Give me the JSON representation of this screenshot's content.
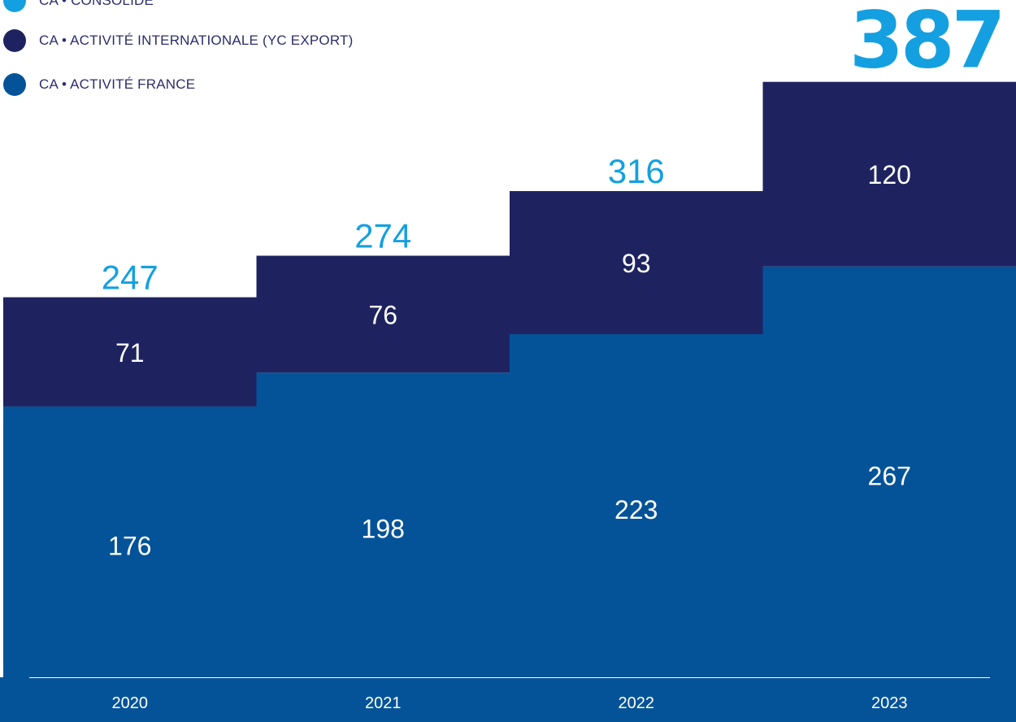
{
  "legend": {
    "consolide": "CA • CONSOLIDÉ",
    "international": "CA • ACTIVITÉ INTERNATIONALE (YC EXPORT)",
    "france": "CA • ACTIVITÉ FRANCE"
  },
  "colors": {
    "consolide": "#14a0e0",
    "international": "#1e2360",
    "france": "#045399",
    "axis_band": "#045399",
    "axis_text": "#ffffff",
    "value_text": "#ffffff"
  },
  "chart_data": {
    "type": "bar",
    "stacked": true,
    "categories": [
      "2020",
      "2021",
      "2022",
      "2023"
    ],
    "series": [
      {
        "name": "CA • ACTIVITÉ FRANCE",
        "values": [
          176,
          198,
          223,
          267
        ]
      },
      {
        "name": "CA • ACTIVITÉ INTERNATIONALE (YC EXPORT)",
        "values": [
          71,
          76,
          93,
          120
        ]
      }
    ],
    "totals": {
      "name": "CA • CONSOLIDÉ",
      "values": [
        247,
        274,
        316,
        387
      ]
    },
    "ylim": [
      0,
      390
    ],
    "legend_position": "top-left",
    "grid": false
  }
}
